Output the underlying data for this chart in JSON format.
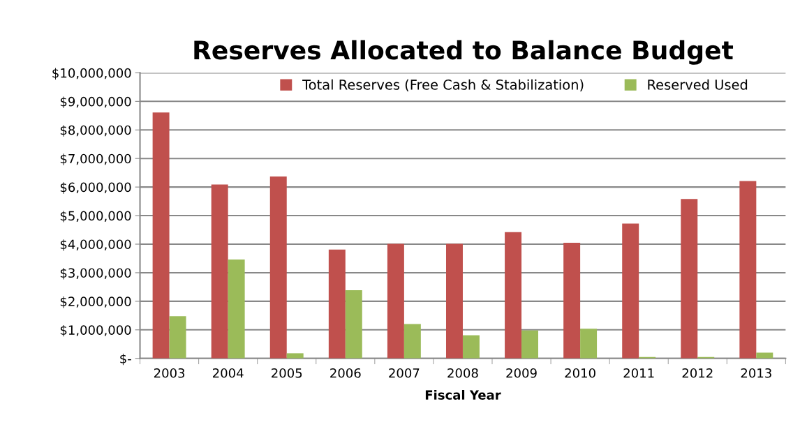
{
  "chart_data": {
    "type": "bar",
    "title": "Reserves Allocated to Balance Budget",
    "xlabel": "Fiscal Year",
    "categories": [
      "2003",
      "2004",
      "2005",
      "2006",
      "2007",
      "2008",
      "2009",
      "2010",
      "2011",
      "2012",
      "2013"
    ],
    "series": [
      {
        "name": "Total Reserves (Free Cash & Stabilization)",
        "color": "#c0504d",
        "values": [
          8610000,
          6090000,
          6370000,
          3810000,
          4010000,
          4010000,
          4420000,
          4050000,
          4720000,
          5580000,
          6210000
        ]
      },
      {
        "name": "Reserved Used",
        "color": "#9bbb59",
        "values": [
          1480000,
          3460000,
          180000,
          2390000,
          1200000,
          810000,
          980000,
          1040000,
          50000,
          50000,
          200000
        ]
      }
    ],
    "ylim": [
      0,
      10000000
    ],
    "yticks": [
      {
        "value": 0,
        "label": "$-"
      },
      {
        "value": 1000000,
        "label": "$1,000,000"
      },
      {
        "value": 2000000,
        "label": "$2,000,000"
      },
      {
        "value": 3000000,
        "label": "$3,000,000"
      },
      {
        "value": 4000000,
        "label": "$4,000,000"
      },
      {
        "value": 5000000,
        "label": "$5,000,000"
      },
      {
        "value": 6000000,
        "label": "$6,000,000"
      },
      {
        "value": 7000000,
        "label": "$7,000,000"
      },
      {
        "value": 8000000,
        "label": "$8,000,000"
      },
      {
        "value": 9000000,
        "label": "$9,000,000"
      },
      {
        "value": 10000000,
        "label": "$10,000,000"
      }
    ],
    "grid": "y",
    "legend": "top"
  }
}
